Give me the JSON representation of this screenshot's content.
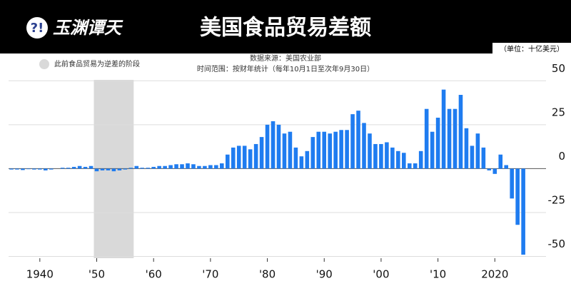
{
  "header": {
    "logo": "玉渊谭天",
    "title": "美国食品贸易差额"
  },
  "chart_data": {
    "type": "bar",
    "source": "数据来源：美国农业部",
    "subtitle": "时间范围：按财年统计（每年10月1日至次年9月30日）",
    "unit": "（单位：十亿美元）",
    "shaded_label": "此前食品贸易为逆差的阶段",
    "shaded_range": [
      1950,
      1956
    ],
    "shade_color": "#d9d9d9",
    "color": "#1f7cf0",
    "x": [
      1935,
      1936,
      1937,
      1938,
      1939,
      1940,
      1941,
      1942,
      1943,
      1944,
      1945,
      1946,
      1947,
      1948,
      1949,
      1950,
      1951,
      1952,
      1953,
      1954,
      1955,
      1956,
      1957,
      1958,
      1959,
      1960,
      1961,
      1962,
      1963,
      1964,
      1965,
      1966,
      1967,
      1968,
      1969,
      1970,
      1971,
      1972,
      1973,
      1974,
      1975,
      1976,
      1977,
      1978,
      1979,
      1980,
      1981,
      1982,
      1983,
      1984,
      1985,
      1986,
      1987,
      1988,
      1989,
      1990,
      1991,
      1992,
      1993,
      1994,
      1995,
      1996,
      1997,
      1998,
      1999,
      2000,
      2001,
      2002,
      2003,
      2004,
      2005,
      2006,
      2007,
      2008,
      2009,
      2010,
      2011,
      2012,
      2013,
      2014,
      2015,
      2016,
      2017,
      2018,
      2019,
      2020,
      2021,
      2022,
      2023,
      2024,
      2025
    ],
    "values": [
      -0.5,
      -0.5,
      -0.8,
      -0.3,
      -0.5,
      -0.5,
      -1,
      -0.5,
      0,
      0.5,
      0.5,
      1,
      1.5,
      1,
      1.5,
      -1.5,
      -1,
      -1,
      -1.5,
      -1,
      -0.5,
      0.5,
      1.5,
      0.5,
      0.5,
      1,
      1.5,
      1.5,
      2,
      2.5,
      2.5,
      3,
      2.5,
      1.5,
      1.5,
      2,
      2,
      3,
      8,
      12,
      13,
      13,
      11,
      14,
      18,
      25,
      27,
      25,
      20,
      21,
      12,
      7,
      10,
      18,
      21,
      21,
      20,
      21,
      22,
      22,
      31,
      33,
      26,
      20,
      14,
      14,
      15,
      12,
      10,
      9,
      3,
      3,
      10,
      34,
      21,
      29,
      45,
      34,
      34,
      42,
      23,
      13,
      20,
      12,
      -1,
      -3,
      8,
      2,
      -17,
      -32,
      -49
    ],
    "xlim": [
      1934.5,
      2029
    ],
    "xticks": [
      1940,
      {
        "value": 1950,
        "label": "'50"
      },
      {
        "value": 1960,
        "label": "'60"
      },
      {
        "value": 1970,
        "label": "'70"
      },
      {
        "value": 1980,
        "label": "'80"
      },
      {
        "value": 1990,
        "label": "'90"
      },
      {
        "value": 2000,
        "label": "'00"
      },
      {
        "value": 2010,
        "label": "'10"
      },
      2020
    ],
    "ylim": [
      -51,
      55
    ],
    "yticks": [
      50,
      25,
      0,
      -25,
      -50
    ],
    "grid": true
  }
}
